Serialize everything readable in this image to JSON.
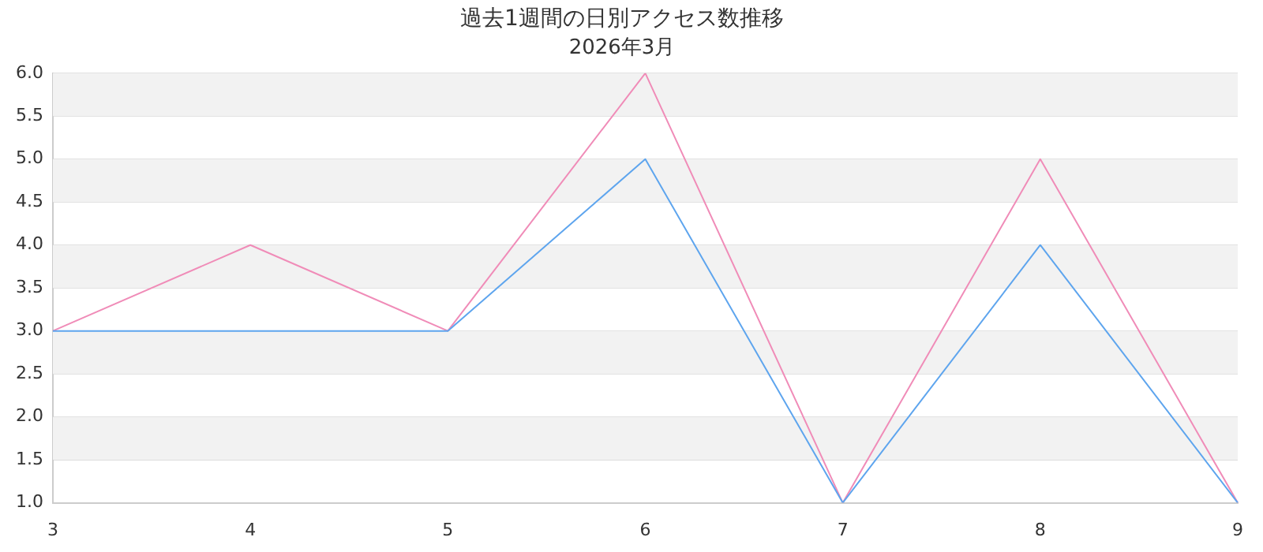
{
  "chart_data": {
    "type": "line",
    "title": "過去1週間の日別アクセス数推移",
    "subtitle": "2026年3月",
    "categories": [
      "3",
      "4",
      "5",
      "6",
      "7",
      "8",
      "9"
    ],
    "series": [
      {
        "color": "#5ea5ee",
        "values": [
          3,
          3,
          3,
          5,
          1,
          4,
          1
        ]
      },
      {
        "color": "#f08cb8",
        "values": [
          3,
          4,
          3,
          6,
          1,
          5,
          1
        ]
      }
    ],
    "ylim": [
      1,
      6
    ],
    "yticks": [
      {
        "value": 1,
        "label": "1.0"
      },
      {
        "value": 1.5,
        "label": "1.5"
      },
      {
        "value": 2,
        "label": "2.0"
      },
      {
        "value": 2.5,
        "label": "2.5"
      },
      {
        "value": 3,
        "label": "3.0"
      },
      {
        "value": 3.5,
        "label": "3.5"
      },
      {
        "value": 4,
        "label": "4.0"
      },
      {
        "value": 4.5,
        "label": "4.5"
      },
      {
        "value": 5,
        "label": "5.0"
      },
      {
        "value": 5.5,
        "label": "5.5"
      },
      {
        "value": 6,
        "label": "6.0"
      }
    ],
    "grid": "y",
    "legend": false,
    "marker": "none",
    "line_style": "solid"
  }
}
